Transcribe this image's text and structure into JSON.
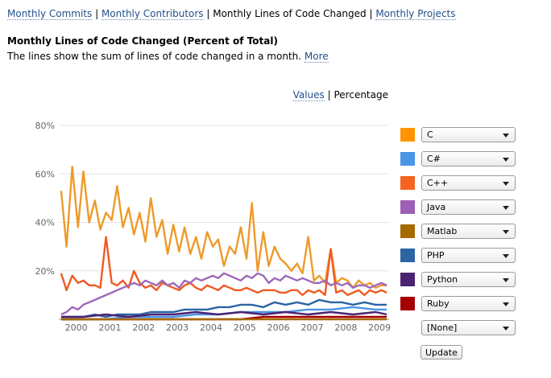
{
  "nav": {
    "items": [
      "Monthly Commits",
      "Monthly Contributors",
      "Monthly Lines of Code Changed",
      "Monthly Projects"
    ],
    "current_index": 2,
    "separator": "|"
  },
  "heading": {
    "title": "Monthly Lines of Code Changed (Percent of Total)",
    "description": "The lines show the sum of lines of code changed in a month.",
    "more_link": "More"
  },
  "mode_toggle": {
    "values_label": "Values",
    "separator": "|",
    "percentage_label": "Percentage",
    "active": "Percentage"
  },
  "legend": [
    {
      "label": "C",
      "color": "#ff9400"
    },
    {
      "label": "C#",
      "color": "#4b95e8"
    },
    {
      "label": "C++",
      "color": "#f5641e"
    },
    {
      "label": "Java",
      "color": "#9e5fb6"
    },
    {
      "label": "Matlab",
      "color": "#a66a00"
    },
    {
      "label": "PHP",
      "color": "#2c65a4"
    },
    {
      "label": "Python",
      "color": "#4a2372"
    },
    {
      "label": "Ruby",
      "color": "#a40000"
    },
    {
      "label": "[None]",
      "color": ""
    }
  ],
  "update_label": "Update",
  "chart_data": {
    "type": "line",
    "title": "",
    "xlabel": "",
    "ylabel": "",
    "ylim": [
      0,
      80
    ],
    "xlim": [
      1999.6,
      2009.4
    ],
    "y_ticks": [
      "80%",
      "60%",
      "40%",
      "20%"
    ],
    "x_ticks": [
      "2000",
      "2001",
      "2002",
      "2003",
      "2004",
      "2005",
      "2006",
      "2007",
      "2008",
      "2009"
    ],
    "grid": true,
    "legend_position": "right",
    "series": [
      {
        "name": "C",
        "color": "#ee9a2a",
        "x": [
          1999.67,
          1999.83,
          2000.0,
          2000.17,
          2000.33,
          2000.5,
          2000.67,
          2000.83,
          2001.0,
          2001.17,
          2001.33,
          2001.5,
          2001.67,
          2001.83,
          2002.0,
          2002.17,
          2002.33,
          2002.5,
          2002.67,
          2002.83,
          2003.0,
          2003.17,
          2003.33,
          2003.5,
          2003.67,
          2003.83,
          2004.0,
          2004.17,
          2004.33,
          2004.5,
          2004.67,
          2004.83,
          2005.0,
          2005.17,
          2005.33,
          2005.5,
          2005.67,
          2005.83,
          2006.0,
          2006.17,
          2006.33,
          2006.5,
          2006.67,
          2006.83,
          2007.0,
          2007.17,
          2007.33,
          2007.5,
          2007.67,
          2007.83,
          2008.0,
          2008.17,
          2008.33,
          2008.5,
          2008.67,
          2008.83,
          2009.0,
          2009.17,
          2009.33
        ],
        "values": [
          53,
          30,
          63,
          38,
          61,
          40,
          49,
          37,
          44,
          41,
          55,
          38,
          46,
          35,
          44,
          32,
          50,
          34,
          41,
          27,
          39,
          28,
          38,
          27,
          34,
          25,
          36,
          30,
          33,
          22,
          30,
          27,
          38,
          25,
          48,
          20,
          36,
          22,
          30,
          25,
          23,
          20,
          23,
          19,
          34,
          16,
          18,
          15,
          29,
          15,
          17,
          16,
          13,
          16,
          14,
          15,
          13,
          14,
          14
        ]
      },
      {
        "name": "C++",
        "color": "#f05a23",
        "x": [
          1999.67,
          1999.83,
          2000.0,
          2000.17,
          2000.33,
          2000.5,
          2000.67,
          2000.83,
          2001.0,
          2001.17,
          2001.33,
          2001.5,
          2001.67,
          2001.83,
          2002.0,
          2002.17,
          2002.33,
          2002.5,
          2002.67,
          2002.83,
          2003.0,
          2003.17,
          2003.33,
          2003.5,
          2003.67,
          2003.83,
          2004.0,
          2004.17,
          2004.33,
          2004.5,
          2004.67,
          2004.83,
          2005.0,
          2005.17,
          2005.33,
          2005.5,
          2005.67,
          2005.83,
          2006.0,
          2006.17,
          2006.33,
          2006.5,
          2006.67,
          2006.83,
          2007.0,
          2007.17,
          2007.33,
          2007.5,
          2007.67,
          2007.83,
          2008.0,
          2008.17,
          2008.33,
          2008.5,
          2008.67,
          2008.83,
          2009.0,
          2009.17,
          2009.33
        ],
        "values": [
          19,
          12,
          18,
          15,
          16,
          14,
          14,
          13,
          34,
          15,
          14,
          16,
          13,
          20,
          15,
          13,
          14,
          12,
          15,
          14,
          13,
          12,
          14,
          15,
          13,
          12,
          14,
          13,
          12,
          14,
          13,
          12,
          12,
          13,
          12,
          11,
          12,
          12,
          12,
          11,
          11,
          12,
          12,
          10,
          12,
          11,
          12,
          10,
          29,
          11,
          12,
          10,
          11,
          12,
          10,
          12,
          11,
          12,
          11
        ]
      },
      {
        "name": "Java",
        "color": "#9e68b8",
        "x": [
          1999.67,
          1999.83,
          2000.0,
          2000.17,
          2000.33,
          2000.5,
          2000.67,
          2000.83,
          2001.0,
          2001.17,
          2001.33,
          2001.5,
          2001.67,
          2001.83,
          2002.0,
          2002.17,
          2002.33,
          2002.5,
          2002.67,
          2002.83,
          2003.0,
          2003.17,
          2003.33,
          2003.5,
          2003.67,
          2003.83,
          2004.0,
          2004.17,
          2004.33,
          2004.5,
          2004.67,
          2004.83,
          2005.0,
          2005.17,
          2005.33,
          2005.5,
          2005.67,
          2005.83,
          2006.0,
          2006.17,
          2006.33,
          2006.5,
          2006.67,
          2006.83,
          2007.0,
          2007.17,
          2007.33,
          2007.5,
          2007.67,
          2007.83,
          2008.0,
          2008.17,
          2008.33,
          2008.5,
          2008.67,
          2008.83,
          2009.0,
          2009.17,
          2009.33
        ],
        "values": [
          2,
          3,
          5,
          4,
          6,
          7,
          8,
          9,
          10,
          11,
          12,
          13,
          14,
          15,
          14,
          16,
          15,
          14,
          16,
          14,
          15,
          13,
          16,
          15,
          17,
          16,
          17,
          18,
          17,
          19,
          18,
          17,
          16,
          18,
          17,
          19,
          18,
          15,
          17,
          16,
          18,
          17,
          16,
          17,
          16,
          15,
          15,
          16,
          14,
          15,
          14,
          15,
          13,
          14,
          14,
          13,
          14,
          15,
          14
        ]
      },
      {
        "name": "PHP",
        "color": "#2c65a4",
        "x": [
          1999.67,
          2000.0,
          2000.33,
          2000.67,
          2001.0,
          2001.33,
          2001.67,
          2002.0,
          2002.33,
          2002.67,
          2003.0,
          2003.33,
          2003.67,
          2004.0,
          2004.33,
          2004.67,
          2005.0,
          2005.33,
          2005.67,
          2006.0,
          2006.33,
          2006.67,
          2007.0,
          2007.33,
          2007.67,
          2008.0,
          2008.33,
          2008.67,
          2009.0,
          2009.33
        ],
        "values": [
          1,
          1,
          1,
          2,
          1,
          2,
          2,
          2,
          3,
          3,
          3,
          4,
          4,
          4,
          5,
          5,
          6,
          6,
          5,
          7,
          6,
          7,
          6,
          8,
          7,
          7,
          6,
          7,
          6,
          6
        ]
      },
      {
        "name": "C#",
        "color": "#4b95e8",
        "x": [
          1999.67,
          2000.33,
          2001.0,
          2001.67,
          2002.33,
          2003.0,
          2003.67,
          2004.33,
          2005.0,
          2005.67,
          2006.33,
          2007.0,
          2007.67,
          2008.33,
          2009.0,
          2009.33
        ],
        "values": [
          0,
          0,
          0,
          1,
          1,
          1,
          2,
          2,
          3,
          3,
          3,
          4,
          4,
          5,
          4,
          4
        ]
      },
      {
        "name": "Python",
        "color": "#4a2372",
        "x": [
          1999.67,
          2000.33,
          2001.0,
          2001.67,
          2002.33,
          2003.0,
          2003.67,
          2004.33,
          2005.0,
          2005.67,
          2006.33,
          2007.0,
          2007.67,
          2008.33,
          2009.0,
          2009.33
        ],
        "values": [
          1,
          1,
          2,
          1,
          2,
          2,
          3,
          2,
          3,
          2,
          3,
          2,
          3,
          2,
          3,
          2
        ]
      },
      {
        "name": "Ruby",
        "color": "#a40000",
        "x": [
          1999.67,
          2000.33,
          2001.0,
          2001.67,
          2002.33,
          2003.0,
          2003.67,
          2004.33,
          2005.0,
          2005.67,
          2006.33,
          2007.0,
          2007.67,
          2008.33,
          2009.0,
          2009.33
        ],
        "values": [
          0,
          0,
          0,
          0,
          0,
          0,
          0,
          0,
          0,
          1,
          1,
          1,
          1,
          1,
          1,
          1
        ]
      },
      {
        "name": "Matlab",
        "color": "#a66a00",
        "x": [
          1999.67,
          2001.0,
          2002.33,
          2003.67,
          2005.0,
          2006.33,
          2007.67,
          2009.0,
          2009.33
        ],
        "values": [
          0,
          0,
          0,
          0,
          0,
          0,
          0,
          0,
          0
        ]
      }
    ]
  }
}
